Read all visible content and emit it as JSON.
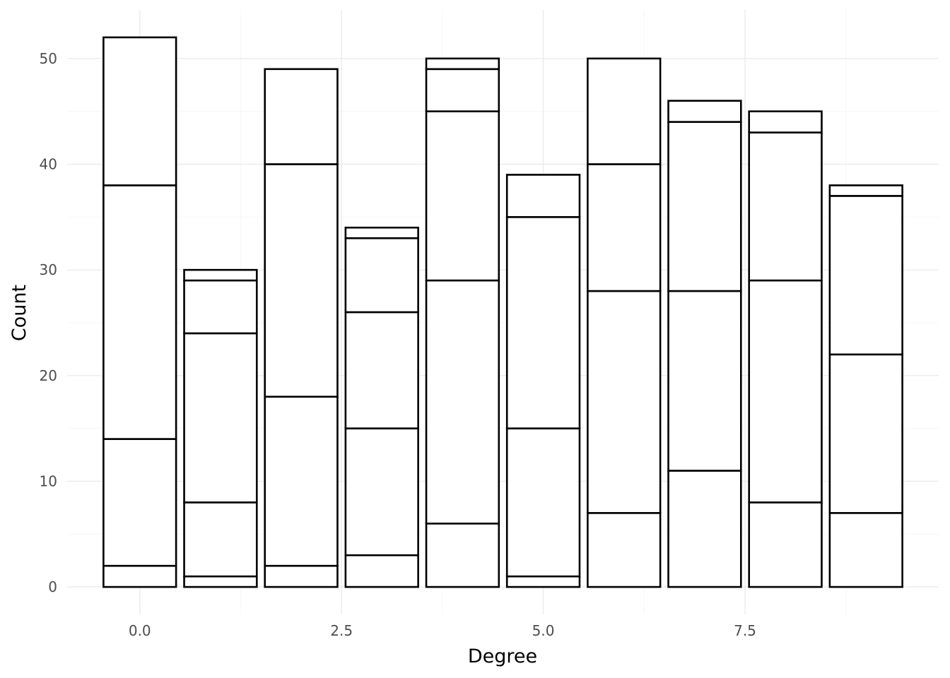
{
  "chart_data": {
    "type": "bar",
    "stacked": true,
    "title": "",
    "xlabel": "Degree",
    "ylabel": "Count",
    "xlim": [
      -0.9,
      9.9
    ],
    "ylim": [
      -2.6,
      54.6
    ],
    "x_breaks": [
      0.0,
      2.5,
      5.0,
      7.5
    ],
    "x_tick_labels": [
      "0.0",
      "2.5",
      "5.0",
      "7.5"
    ],
    "y_breaks": [
      0,
      10,
      20,
      30,
      40,
      50
    ],
    "y_tick_labels": [
      "0",
      "10",
      "20",
      "30",
      "40",
      "50"
    ],
    "grid": true,
    "legend": "none",
    "bar_width": 0.9,
    "fill_color": "#ffffff",
    "outline_color": "#000000",
    "x": [
      0,
      1,
      2,
      3,
      4,
      5,
      6,
      7,
      8,
      9
    ],
    "stacks": [
      [
        0,
        2,
        14,
        38,
        52
      ],
      [
        0,
        1,
        8,
        24,
        29,
        30
      ],
      [
        0,
        2,
        18,
        40,
        49
      ],
      [
        0,
        3,
        15,
        26,
        33,
        34
      ],
      [
        0,
        6,
        29,
        45,
        49,
        50
      ],
      [
        0,
        1,
        15,
        35,
        39
      ],
      [
        0,
        7,
        28,
        40,
        50
      ],
      [
        0,
        11,
        28,
        44,
        46
      ],
      [
        0,
        8,
        29,
        43,
        45
      ],
      [
        0,
        7,
        22,
        37,
        38
      ]
    ]
  }
}
